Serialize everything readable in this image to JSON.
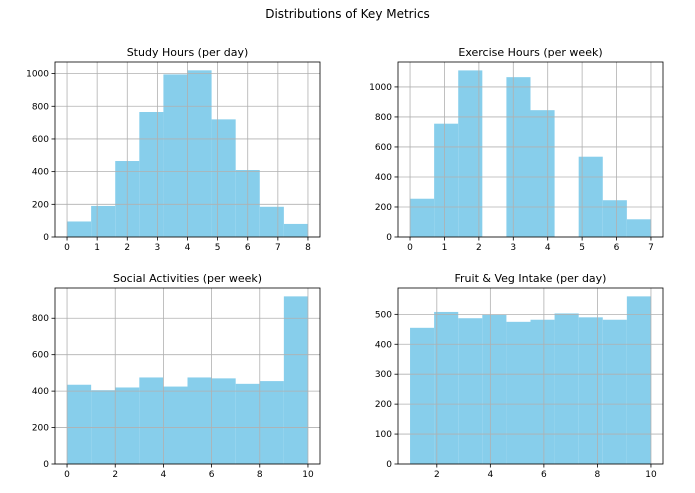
{
  "figure": {
    "suptitle": "Distributions of Key Metrics"
  },
  "colors": {
    "bar": "#87ceeb",
    "grid": "#b0b0b0",
    "axis": "#000000"
  },
  "chart_data": [
    {
      "type": "bar",
      "title": "Study Hours (per day)",
      "bin_edges": [
        0,
        0.8,
        1.6,
        2.4,
        3.2,
        4.0,
        4.8,
        5.6,
        6.4,
        7.2,
        8.0
      ],
      "values": [
        95,
        190,
        465,
        765,
        995,
        1020,
        720,
        410,
        185,
        80
      ],
      "xlim": [
        -0.4,
        8.4
      ],
      "ylim": [
        0,
        1071
      ],
      "xticks": [
        0,
        1,
        2,
        3,
        4,
        5,
        6,
        7,
        8
      ],
      "yticks": [
        0,
        200,
        400,
        600,
        800,
        1000
      ],
      "xlabel": "",
      "ylabel": "",
      "grid": true
    },
    {
      "type": "bar",
      "title": "Exercise Hours (per week)",
      "bin_edges": [
        0,
        0.7,
        1.4,
        2.1,
        2.8,
        3.5,
        4.2,
        4.9,
        5.6,
        6.3,
        7.0
      ],
      "values": [
        255,
        755,
        1110,
        0,
        1065,
        845,
        0,
        535,
        245,
        118
      ],
      "xlim": [
        -0.35,
        7.35
      ],
      "ylim": [
        0,
        1166
      ],
      "xticks": [
        0,
        1,
        2,
        3,
        4,
        5,
        6,
        7
      ],
      "yticks": [
        0,
        200,
        400,
        600,
        800,
        1000
      ],
      "xlabel": "",
      "ylabel": "",
      "grid": true
    },
    {
      "type": "bar",
      "title": "Social Activities (per week)",
      "bin_edges": [
        0,
        1,
        2,
        3,
        4,
        5,
        6,
        7,
        8,
        9,
        10
      ],
      "values": [
        435,
        405,
        420,
        475,
        425,
        475,
        470,
        440,
        455,
        920
      ],
      "xlim": [
        -0.5,
        10.5
      ],
      "ylim": [
        0,
        966
      ],
      "xticks": [
        0,
        2,
        4,
        6,
        8,
        10
      ],
      "yticks": [
        0,
        200,
        400,
        600,
        800
      ],
      "xlabel": "",
      "ylabel": "",
      "grid": true
    },
    {
      "type": "bar",
      "title": "Fruit & Veg Intake (per day)",
      "bin_edges": [
        1,
        1.9,
        2.8,
        3.7,
        4.6,
        5.5,
        6.4,
        7.3,
        8.2,
        9.1,
        10
      ],
      "values": [
        455,
        508,
        487,
        498,
        475,
        482,
        503,
        490,
        482,
        560
      ],
      "xlim": [
        0.55,
        10.45
      ],
      "ylim": [
        0,
        588
      ],
      "xticks": [
        2,
        4,
        6,
        8,
        10
      ],
      "yticks": [
        0,
        100,
        200,
        300,
        400,
        500
      ],
      "xlabel": "",
      "ylabel": "",
      "grid": true
    }
  ]
}
